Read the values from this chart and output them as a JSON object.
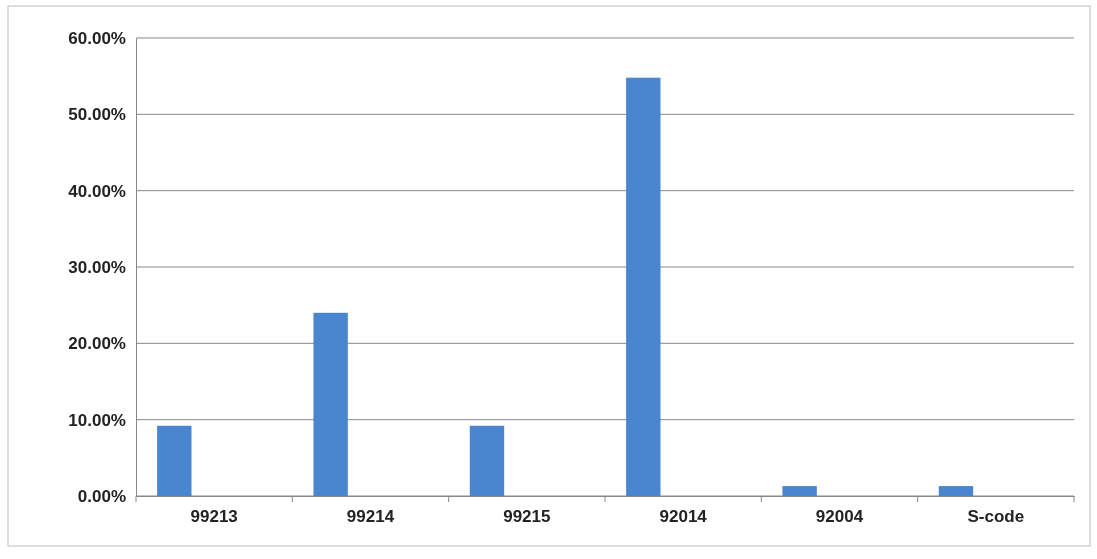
{
  "chart_data": {
    "type": "bar",
    "categories": [
      "99213",
      "99214",
      "99215",
      "92014",
      "92004",
      "S-code"
    ],
    "values": [
      9.2,
      24.0,
      9.2,
      54.8,
      1.3,
      1.3
    ],
    "color": "#4a86d0",
    "ylim": [
      0,
      60
    ],
    "yticks": [
      {
        "value": 0,
        "label": "0.00%"
      },
      {
        "value": 10,
        "label": "10.00%"
      },
      {
        "value": 20,
        "label": "20.00%"
      },
      {
        "value": 30,
        "label": "30.00%"
      },
      {
        "value": 40,
        "label": "40.00%"
      },
      {
        "value": 50,
        "label": "50.00%"
      },
      {
        "value": 60,
        "label": "60.00%"
      }
    ],
    "grid": "y"
  }
}
